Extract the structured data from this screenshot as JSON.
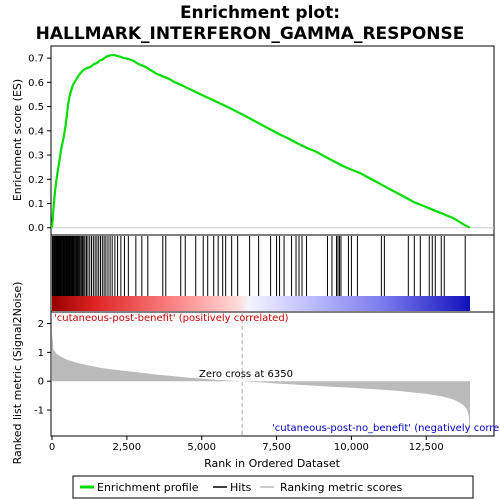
{
  "chart_data": {
    "type": "line",
    "title_line1": "Enrichment plot:",
    "title_line2": "HALLMARK_INTERFERON_GAMMA_RESPONSE",
    "xlabel": "Rank in Ordered Dataset",
    "ylabel_top": "Enrichment score (ES)",
    "ylabel_bottom": "Ranked list metric (Signal2Noise)",
    "x_max": 14000,
    "top_panel": {
      "ylim": [
        -0.03,
        0.75
      ],
      "yticks": [
        0.0,
        0.1,
        0.2,
        0.3,
        0.4,
        0.5,
        0.6,
        0.7
      ],
      "ytick_labels": [
        "0.0",
        "0.1",
        "0.2",
        "0.3",
        "0.4",
        "0.5",
        "0.6",
        "0.7"
      ],
      "series": [
        {
          "name": "Enrichment profile",
          "color": "#00dd00",
          "x": [
            0,
            50,
            100,
            150,
            200,
            250,
            300,
            350,
            400,
            450,
            500,
            550,
            600,
            650,
            700,
            750,
            800,
            900,
            1000,
            1100,
            1200,
            1300,
            1400,
            1500,
            1600,
            1700,
            1800,
            1900,
            2000,
            2100,
            2200,
            2300,
            2400,
            2500,
            2700,
            2900,
            3100,
            3300,
            3500,
            3700,
            3900,
            4100,
            4300,
            4500,
            4800,
            5100,
            5400,
            5700,
            6000,
            6350,
            6700,
            7000,
            7300,
            7600,
            7900,
            8200,
            8500,
            8800,
            9100,
            9400,
            9700,
            10000,
            10300,
            10600,
            10900,
            11200,
            11500,
            11800,
            12100,
            12400,
            12600,
            12800,
            13000,
            13200,
            13400,
            13600,
            13800,
            13950
          ],
          "y": [
            0.0,
            0.08,
            0.15,
            0.2,
            0.24,
            0.28,
            0.32,
            0.35,
            0.38,
            0.42,
            0.47,
            0.52,
            0.55,
            0.57,
            0.59,
            0.6,
            0.61,
            0.63,
            0.645,
            0.655,
            0.66,
            0.665,
            0.675,
            0.68,
            0.69,
            0.695,
            0.705,
            0.71,
            0.712,
            0.712,
            0.708,
            0.705,
            0.7,
            0.698,
            0.69,
            0.675,
            0.665,
            0.65,
            0.635,
            0.625,
            0.615,
            0.6,
            0.59,
            0.578,
            0.56,
            0.543,
            0.525,
            0.508,
            0.49,
            0.468,
            0.445,
            0.425,
            0.405,
            0.385,
            0.368,
            0.348,
            0.33,
            0.315,
            0.295,
            0.275,
            0.255,
            0.24,
            0.225,
            0.205,
            0.185,
            0.165,
            0.145,
            0.125,
            0.105,
            0.09,
            0.08,
            0.07,
            0.06,
            0.05,
            0.04,
            0.025,
            0.01,
            0.0
          ]
        }
      ]
    },
    "hits_panel": {
      "series_name": "Hits",
      "hit_positions": [
        15,
        40,
        70,
        95,
        120,
        150,
        175,
        200,
        220,
        245,
        270,
        295,
        320,
        345,
        370,
        395,
        420,
        445,
        470,
        495,
        520,
        545,
        570,
        595,
        620,
        645,
        670,
        700,
        730,
        760,
        790,
        820,
        850,
        880,
        910,
        940,
        980,
        1020,
        1060,
        1100,
        1150,
        1200,
        1260,
        1320,
        1380,
        1440,
        1500,
        1560,
        1620,
        1680,
        1740,
        1800,
        1870,
        1940,
        2010,
        2100,
        2190,
        2300,
        2420,
        2550,
        2800,
        3000,
        3200,
        3700,
        3800,
        4300,
        4450,
        4800,
        5050,
        5200,
        5400,
        5550,
        5700,
        5800,
        6000,
        6200,
        6600,
        6900,
        7300,
        7500,
        7600,
        7750,
        8000,
        8150,
        8250,
        8350,
        8500,
        9200,
        9350,
        9500,
        9550,
        9600,
        9650,
        9900,
        10000,
        10200,
        11000,
        11100,
        11900,
        12100,
        12300,
        12600,
        12700,
        12800,
        13000,
        13100,
        13800
      ]
    },
    "bottom_panel": {
      "ylim": [
        -1.9,
        2.4
      ],
      "yticks": [
        -1,
        0,
        1,
        2
      ],
      "ytick_labels": [
        "-1",
        "0",
        "1",
        "2"
      ],
      "series_name": "Ranking metric scores",
      "x": [
        0,
        50,
        150,
        300,
        500,
        800,
        1200,
        1600,
        2000,
        2500,
        3000,
        3500,
        4000,
        4500,
        5000,
        5500,
        6000,
        6350,
        7000,
        7500,
        8000,
        8500,
        9000,
        9500,
        10000,
        10500,
        11000,
        11500,
        12000,
        12500,
        13000,
        13300,
        13500,
        13700,
        13850,
        13920,
        13960
      ],
      "y": [
        1.7,
        1.1,
        0.95,
        0.85,
        0.75,
        0.65,
        0.55,
        0.47,
        0.41,
        0.35,
        0.29,
        0.23,
        0.18,
        0.13,
        0.09,
        0.05,
        0.02,
        0.0,
        -0.04,
        -0.08,
        -0.11,
        -0.14,
        -0.17,
        -0.2,
        -0.23,
        -0.26,
        -0.29,
        -0.33,
        -0.38,
        -0.44,
        -0.52,
        -0.6,
        -0.68,
        -0.8,
        -0.95,
        -1.2,
        -1.9
      ]
    },
    "xticks": [
      0,
      2500,
      5000,
      7500,
      10000,
      12500
    ],
    "xtick_labels": [
      "0",
      "2,500",
      "5,000",
      "7,500",
      "10,000",
      "12,500"
    ],
    "zero_cross": 6350,
    "annotations": {
      "positive": "'cutaneous-post-benefit' (positively correlated)",
      "negative": "'cutaneous-post-no_benefit' (negatively correlated)",
      "zero_cross": "Zero cross at 6350"
    },
    "colors": {
      "es_line": "#00dd00",
      "hits": "#000000",
      "metric_fill": "#bbbbbb",
      "positive_text": "#cc0000",
      "negative_text": "#0000cc",
      "zero_line": "#aaaaaa"
    },
    "legend": {
      "placement": "bottom",
      "items": [
        "Enrichment profile",
        "Hits",
        "Ranking metric scores"
      ]
    }
  }
}
